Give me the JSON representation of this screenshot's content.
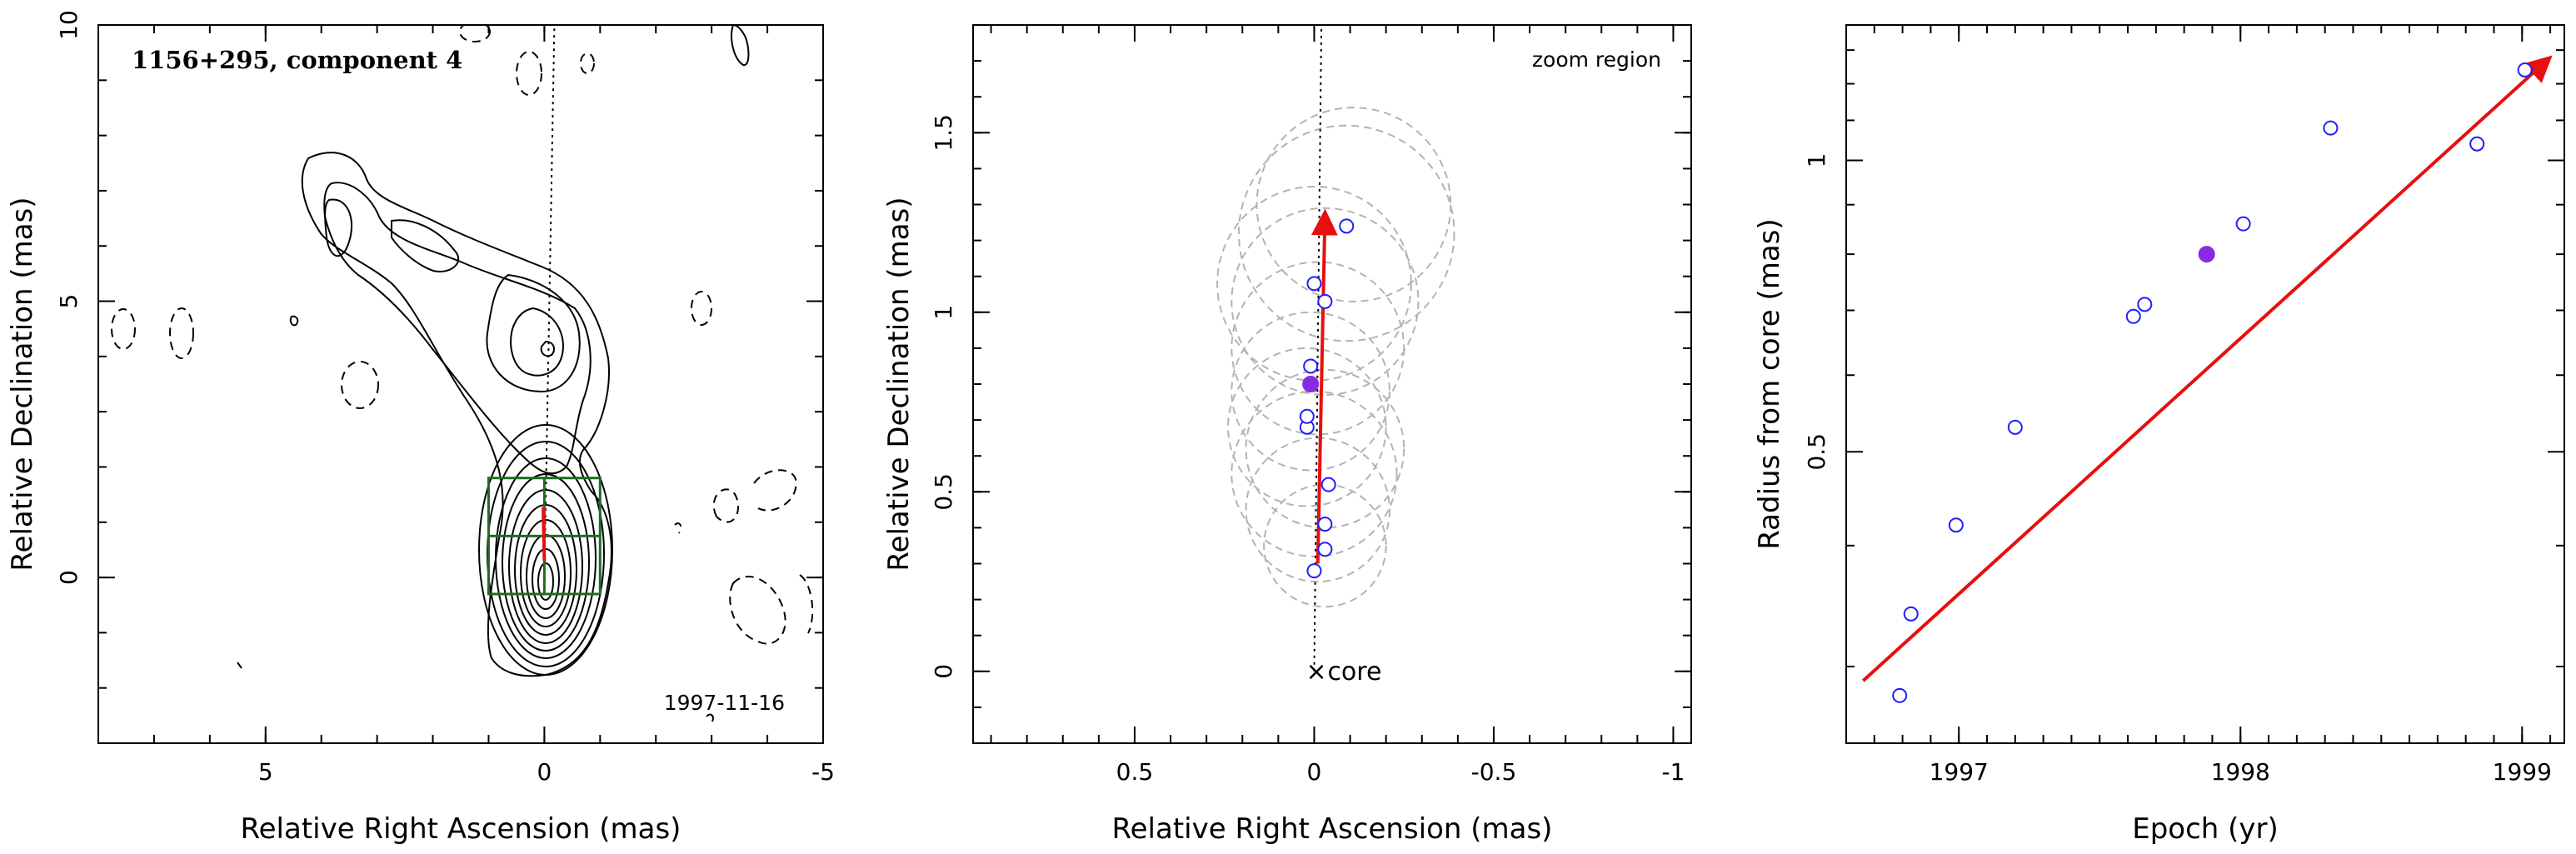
{
  "chart_data": [
    {
      "type": "contour",
      "title": "1156+295, component 4",
      "annotation": "1997-11-16",
      "xlabel": "Relative Right Ascension (mas)",
      "ylabel": "Relative Declination (mas)",
      "xlim": [
        8,
        -5
      ],
      "ylim": [
        -3,
        10
      ],
      "xticks": [
        "5",
        "0",
        "-5"
      ],
      "yticks": [
        "0",
        "5",
        "10"
      ],
      "ridge_line": true,
      "zoom_box": {
        "x": [
          1,
          -1
        ],
        "y": [
          -0.3,
          1.8
        ]
      },
      "core_centre": {
        "x": 0,
        "y": 0
      }
    },
    {
      "type": "scatter",
      "label": "zoom region",
      "xlabel": "Relative Right Ascension (mas)",
      "ylabel": "Relative Declination (mas)",
      "xlim": [
        0.95,
        -1.05
      ],
      "ylim": [
        -0.2,
        1.8
      ],
      "xticks": [
        "0.5",
        "0",
        "-0.5",
        "-1"
      ],
      "yticks": [
        "0",
        "0.5",
        "1",
        "1.5"
      ],
      "core_marker": "×",
      "core_label": "core",
      "points": [
        {
          "x": 0.0,
          "y": 0.28
        },
        {
          "x": -0.03,
          "y": 0.34
        },
        {
          "x": -0.03,
          "y": 0.41
        },
        {
          "x": -0.04,
          "y": 0.52
        },
        {
          "x": 0.02,
          "y": 0.68
        },
        {
          "x": 0.02,
          "y": 0.71
        },
        {
          "x": 0.01,
          "y": 0.85
        },
        {
          "x": -0.03,
          "y": 1.03
        },
        {
          "x": 0.0,
          "y": 1.08
        },
        {
          "x": -0.09,
          "y": 1.24
        }
      ],
      "highlight": {
        "x": 0.01,
        "y": 0.8
      },
      "circles": [
        {
          "x": -0.03,
          "y": 0.35,
          "r": 0.17
        },
        {
          "x": -0.01,
          "y": 0.45,
          "r": 0.2
        },
        {
          "x": 0.0,
          "y": 0.55,
          "r": 0.23
        },
        {
          "x": 0.02,
          "y": 0.68,
          "r": 0.22
        },
        {
          "x": 0.01,
          "y": 0.78,
          "r": 0.22
        },
        {
          "x": -0.01,
          "y": 0.9,
          "r": 0.24
        },
        {
          "x": -0.03,
          "y": 1.03,
          "r": 0.26
        },
        {
          "x": 0.0,
          "y": 1.08,
          "r": 0.27
        },
        {
          "x": -0.09,
          "y": 1.22,
          "r": 0.3
        },
        {
          "x": -0.11,
          "y": 1.3,
          "r": 0.27
        },
        {
          "x": -0.03,
          "y": 0.62,
          "r": 0.22
        }
      ],
      "arrow": {
        "x1": -0.01,
        "y1": 0.3,
        "x2": -0.03,
        "y2": 1.27
      },
      "ridge_line": true
    },
    {
      "type": "scatter",
      "xlabel": "Epoch (yr)",
      "ylabel": "Radius from core (mas)",
      "xlim": [
        1996.6,
        1999.15
      ],
      "ylim": [
        0.25,
        1.38
      ],
      "log_y": true,
      "xticks": [
        "1997",
        "1998",
        "1999"
      ],
      "yticks": [
        "0.5",
        "1"
      ],
      "x": [
        1996.79,
        1996.83,
        1996.99,
        1997.2,
        1997.62,
        1997.66,
        1998.01,
        1998.32,
        1998.84,
        1999.01
      ],
      "y": [
        0.28,
        0.34,
        0.42,
        0.53,
        0.69,
        0.71,
        0.86,
        1.08,
        1.04,
        1.24
      ],
      "highlight": {
        "x": 1997.88,
        "y": 0.8
      },
      "fit": {
        "x": [
          1996.66,
          1999.09
        ],
        "y": [
          0.29,
          1.27
        ]
      }
    }
  ],
  "colors": {
    "axis": "#000000",
    "contour": "#000000",
    "box": "#1f6b1f",
    "arrow": "#e61010",
    "points": "#1f1fff",
    "highlight": "#8a2be2",
    "circles": "#b3b3b3"
  }
}
